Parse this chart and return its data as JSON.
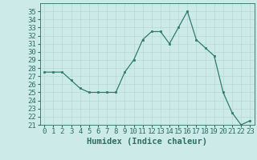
{
  "x": [
    0,
    1,
    2,
    3,
    4,
    5,
    6,
    7,
    8,
    9,
    10,
    11,
    12,
    13,
    14,
    15,
    16,
    17,
    18,
    19,
    20,
    21,
    22,
    23
  ],
  "y": [
    27.5,
    27.5,
    27.5,
    26.5,
    25.5,
    25.0,
    25.0,
    25.0,
    25.0,
    27.5,
    29.0,
    31.5,
    32.5,
    32.5,
    31.0,
    33.0,
    35.0,
    31.5,
    30.5,
    29.5,
    25.0,
    22.5,
    21.0,
    21.5
  ],
  "line_color": "#2e7d6e",
  "marker_color": "#2e7d6e",
  "bg_color": "#cceae8",
  "grid_color": "#b8d8d4",
  "xlabel": "Humidex (Indice chaleur)",
  "xlim": [
    -0.5,
    23.5
  ],
  "ylim": [
    21,
    36
  ],
  "yticks": [
    21,
    22,
    23,
    24,
    25,
    26,
    27,
    28,
    29,
    30,
    31,
    32,
    33,
    34,
    35
  ],
  "xticks": [
    0,
    1,
    2,
    3,
    4,
    5,
    6,
    7,
    8,
    9,
    10,
    11,
    12,
    13,
    14,
    15,
    16,
    17,
    18,
    19,
    20,
    21,
    22,
    23
  ],
  "font_color": "#2e6e62",
  "font_size": 6.5,
  "xlabel_fontsize": 7.5
}
